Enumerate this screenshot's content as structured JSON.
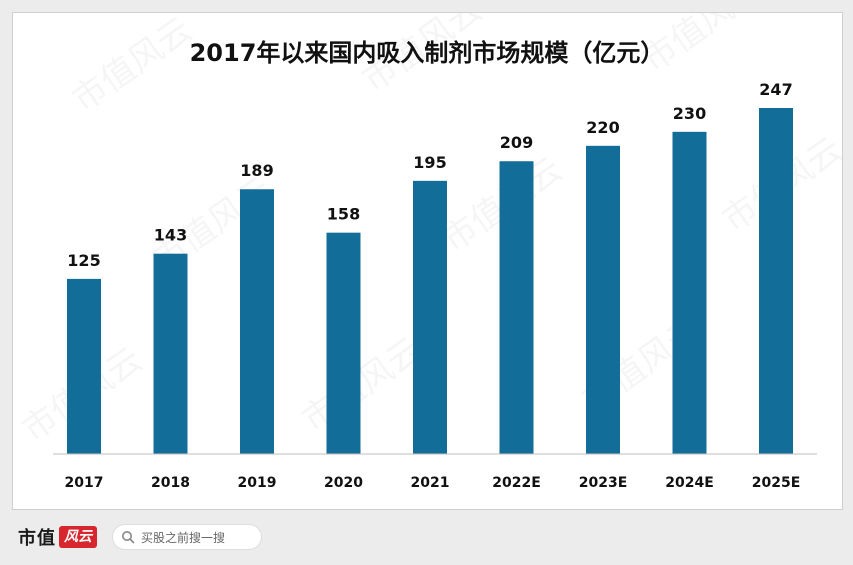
{
  "chart_data": {
    "type": "bar",
    "title": "2017年以来国内吸入制剂市场规模（亿元）",
    "categories": [
      "2017",
      "2018",
      "2019",
      "2020",
      "2021",
      "2022E",
      "2023E",
      "2024E",
      "2025E"
    ],
    "values": [
      125,
      143,
      189,
      158,
      195,
      209,
      220,
      230,
      247
    ],
    "ylim": [
      0,
      260
    ],
    "bar_color": "#136d99",
    "grid": false,
    "legend": "none"
  },
  "watermark": "市值风云",
  "footer": {
    "logo_text": "市值",
    "logo_badge": "风云",
    "search_placeholder": "买股之前搜一搜"
  }
}
